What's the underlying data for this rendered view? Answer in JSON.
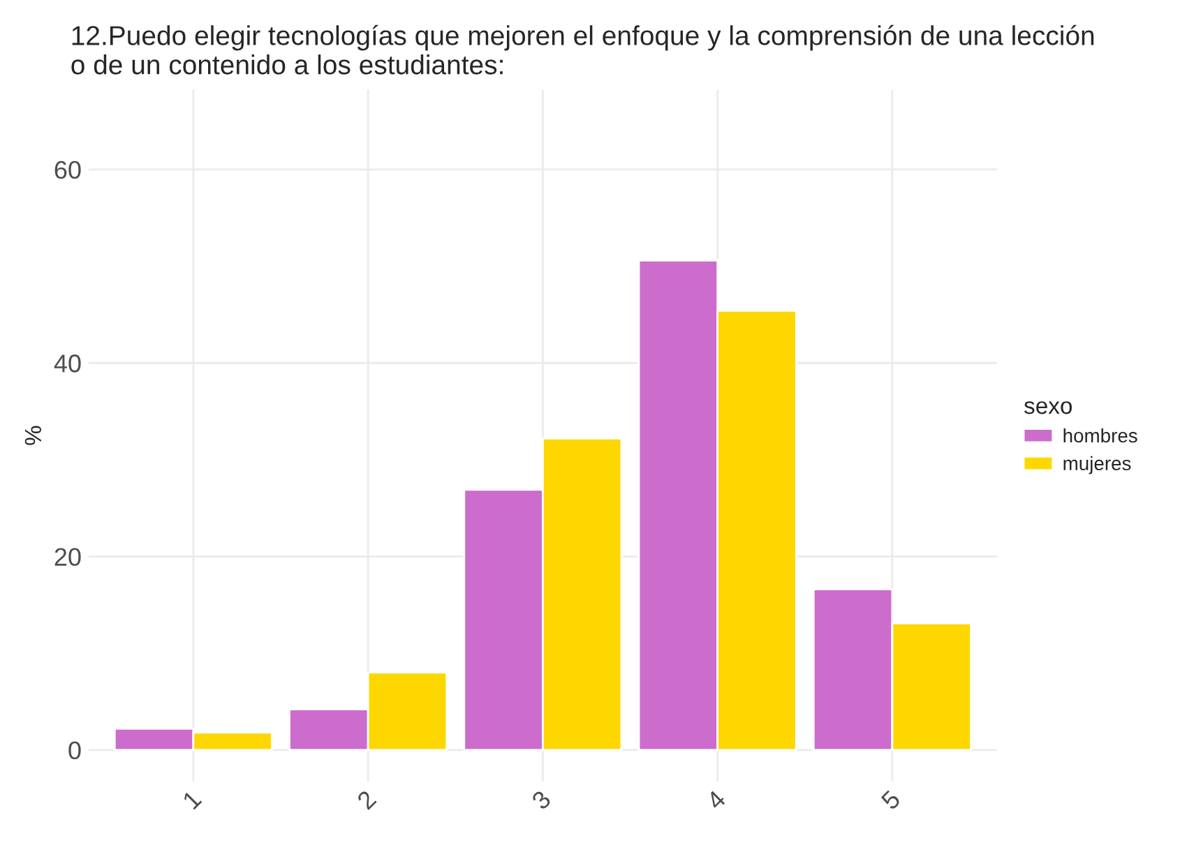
{
  "chart_data": {
    "type": "bar",
    "title": "12.Puedo elegir tecnologías que mejoren el enfoque y la comprensión de una lección\no de un contenido a los estudiantes:",
    "ylabel": "%",
    "legend_title": "sexo",
    "categories": [
      "1",
      "2",
      "3",
      "4",
      "5"
    ],
    "series": [
      {
        "name": "hombres",
        "color": "#cc6ccc",
        "values": [
          2.2,
          4.2,
          26.9,
          50.6,
          16.6
        ]
      },
      {
        "name": "mujeres",
        "color": "#ffd700",
        "values": [
          1.8,
          8.0,
          32.2,
          45.4,
          13.1
        ]
      }
    ],
    "ylim": [
      -3.25,
      68.25
    ],
    "yticks": [
      0,
      20,
      40,
      60
    ],
    "grid": true,
    "legend": "right"
  }
}
